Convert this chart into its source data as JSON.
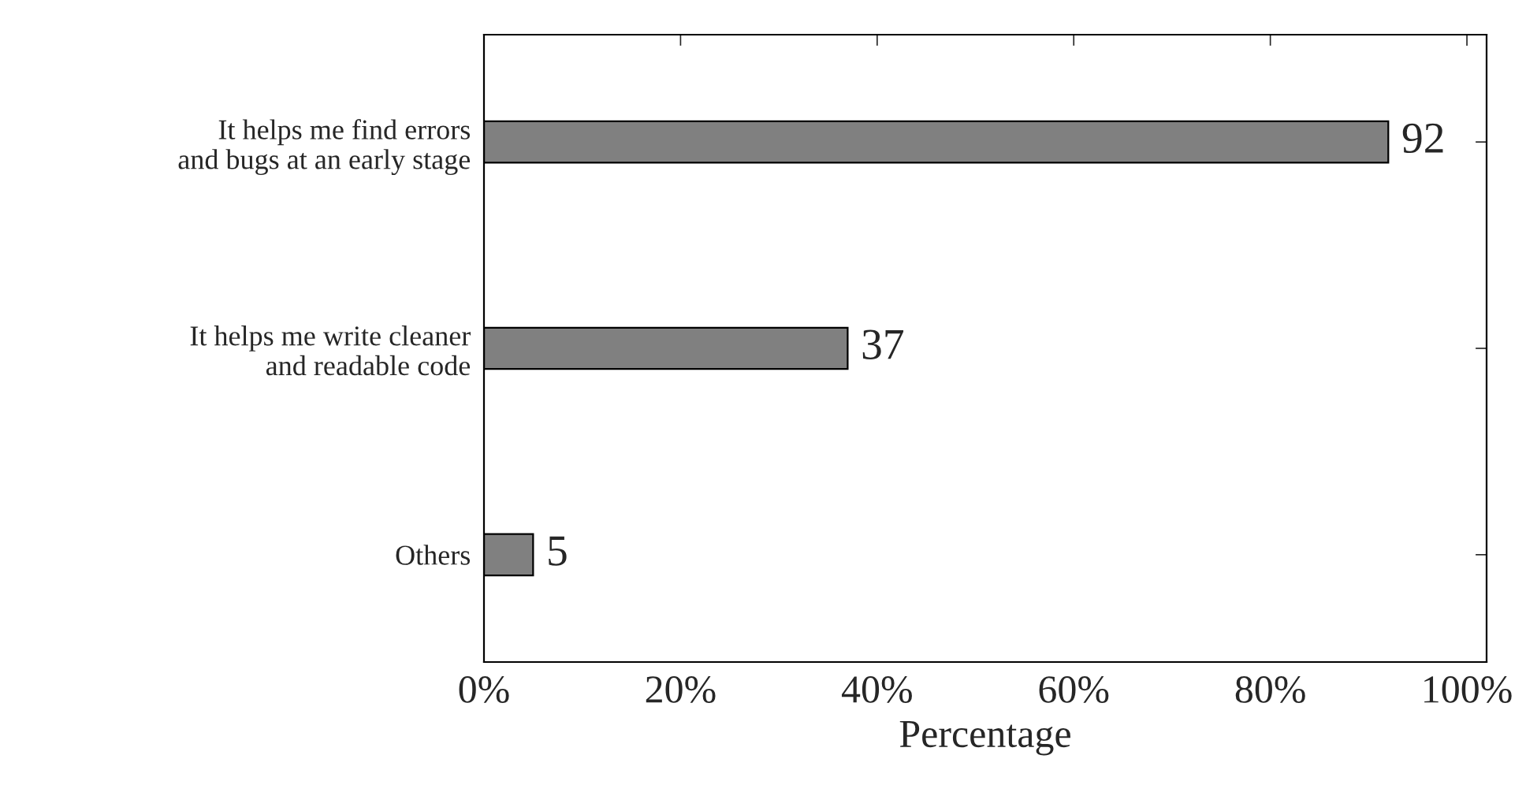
{
  "chart_data": {
    "type": "bar",
    "orientation": "horizontal",
    "xlabel": "Percentage",
    "categories": [
      "It helps me find errors\nand bugs at an early stage",
      "It helps me write cleaner\nand readable code",
      "Others"
    ],
    "values": [
      92,
      37,
      5
    ],
    "color": "#808080",
    "data_labels": true,
    "xlim": [
      0,
      102
    ],
    "xticks": [
      {
        "value": 0,
        "label": "0%"
      },
      {
        "value": 20,
        "label": "20%"
      },
      {
        "value": 40,
        "label": "40%"
      },
      {
        "value": 60,
        "label": "60%"
      },
      {
        "value": 80,
        "label": "80%"
      },
      {
        "value": 100,
        "label": "100%"
      }
    ],
    "grid": false,
    "legend": false
  }
}
